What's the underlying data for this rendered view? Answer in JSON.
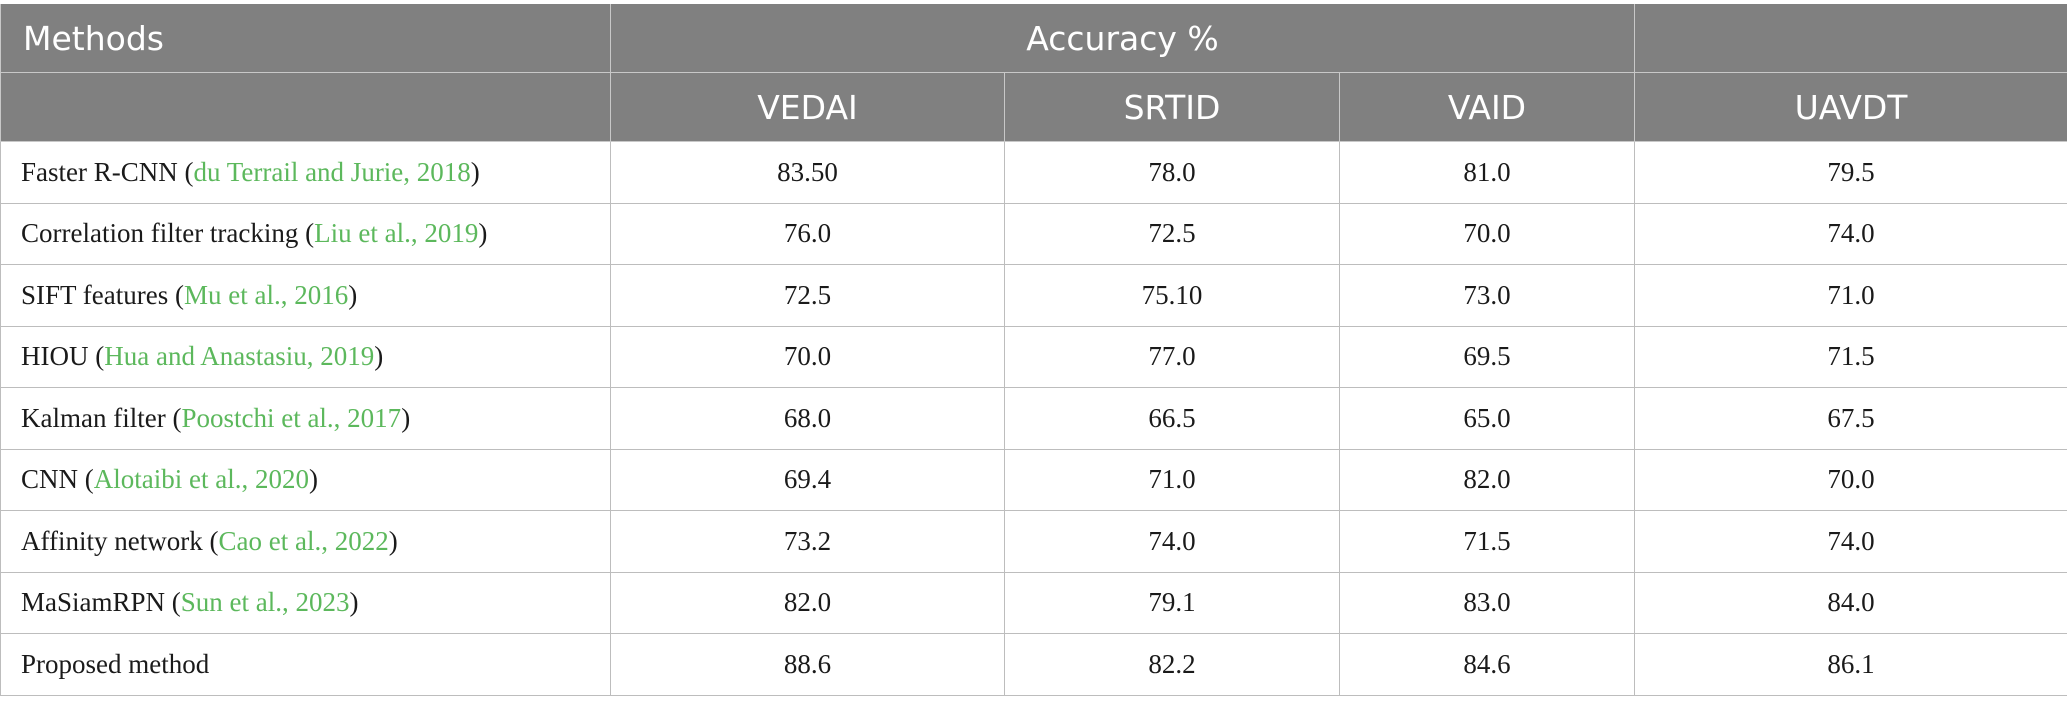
{
  "header": {
    "methods_label": "Methods",
    "group_label": "Accuracy %",
    "columns": [
      "VEDAI",
      "SRTID",
      "VAID",
      "UAVDT"
    ]
  },
  "rows": [
    {
      "method": "Faster R-CNN",
      "cite": "du Terrail and Jurie, 2018",
      "values": [
        "83.50",
        "78.0",
        "81.0",
        "79.5"
      ]
    },
    {
      "method": "Correlation filter tracking",
      "cite": "Liu et al., 2019",
      "values": [
        "76.0",
        "72.5",
        "70.0",
        "74.0"
      ]
    },
    {
      "method": "SIFT features",
      "cite": "Mu et al., 2016",
      "values": [
        "72.5",
        "75.10",
        "73.0",
        "71.0"
      ]
    },
    {
      "method": "HIOU",
      "cite": "Hua and Anastasiu, 2019",
      "values": [
        "70.0",
        "77.0",
        "69.5",
        "71.5"
      ]
    },
    {
      "method": "Kalman filter",
      "cite": "Poostchi et al., 2017",
      "values": [
        "68.0",
        "66.5",
        "65.0",
        "67.5"
      ]
    },
    {
      "method": "CNN",
      "cite": "Alotaibi et al., 2020",
      "values": [
        "69.4",
        "71.0",
        "82.0",
        "70.0"
      ]
    },
    {
      "method": "Affinity network",
      "cite": "Cao et al., 2022",
      "values": [
        "73.2",
        "74.0",
        "71.5",
        "74.0"
      ]
    },
    {
      "method": "MaSiamRPN",
      "cite": "Sun et al., 2023",
      "values": [
        "82.0",
        "79.1",
        "83.0",
        "84.0"
      ]
    },
    {
      "method": "Proposed method",
      "cite": "",
      "values": [
        "88.6",
        "82.2",
        "84.6",
        "86.1"
      ]
    }
  ],
  "colors": {
    "header_bg": "#808080",
    "header_text": "#ffffff",
    "citation": "#5cb85c",
    "border": "#bdbdbd"
  }
}
